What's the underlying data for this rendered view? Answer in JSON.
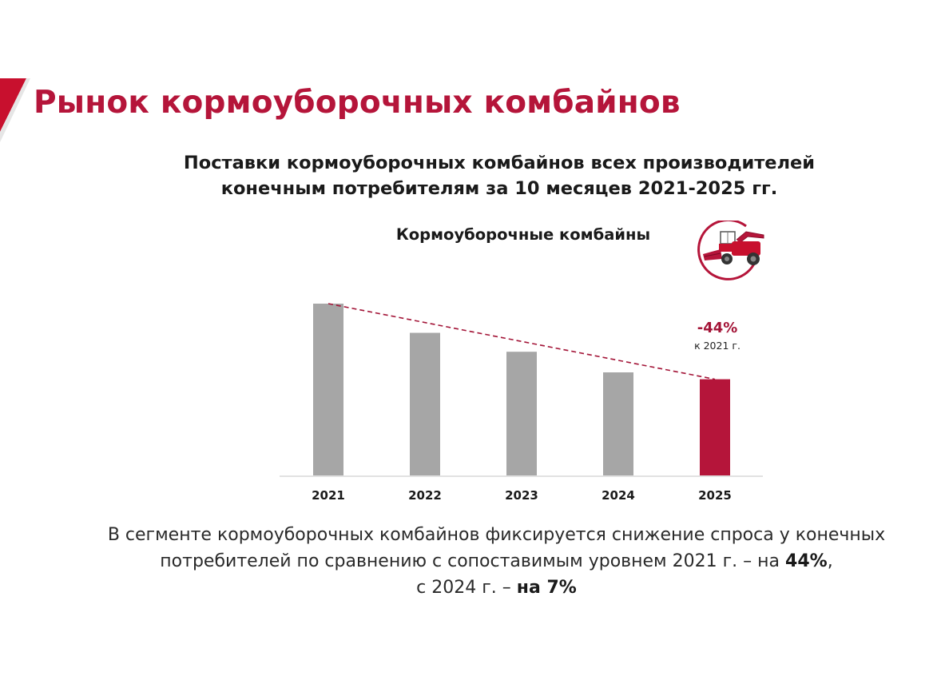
{
  "page": {
    "title": "Рынок кормоуборочных комбайнов",
    "subtitle_line1": "Поставки кормоуборочных комбайнов всех производителей",
    "subtitle_line2": "конечным потребителям за 10 месяцев 2021-2025 гг.",
    "icon": "forage-harvester-icon",
    "accent_color": "#b5153a"
  },
  "chart_data": {
    "type": "bar",
    "title": "Кормоуборочные комбайны",
    "categories": [
      "2021",
      "2022",
      "2023",
      "2024",
      "2025"
    ],
    "values": [
      100,
      83,
      72,
      60,
      56
    ],
    "xlabel": "",
    "ylabel": "",
    "ylim": [
      0,
      100
    ],
    "grid": false,
    "colors": {
      "default": "#a6a6a6",
      "highlight": "#b5153a",
      "trend": "#a31437"
    },
    "highlight_index": 4,
    "annotation": {
      "value": "-44%",
      "note": "к 2021 г."
    }
  },
  "footer": {
    "line1": "В сегменте кормоуборочных комбайнов фиксируется снижение спроса у конечных",
    "line2_prefix": "потребителей по сравнению с сопоставимым уровнем 2021 г. – на ",
    "line2_bold": "44%",
    "line2_suffix": ",",
    "line3_prefix": "с 2024 г. – ",
    "line3_bold": "на 7%"
  }
}
